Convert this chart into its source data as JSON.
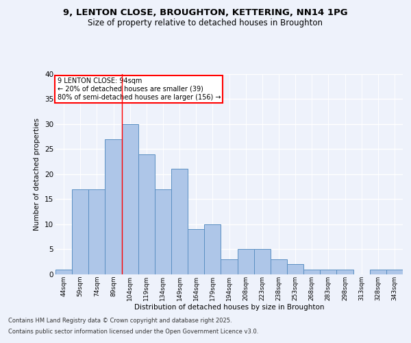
{
  "title_line1": "9, LENTON CLOSE, BROUGHTON, KETTERING, NN14 1PG",
  "title_line2": "Size of property relative to detached houses in Broughton",
  "xlabel": "Distribution of detached houses by size in Broughton",
  "ylabel": "Number of detached properties",
  "categories": [
    "44sqm",
    "59sqm",
    "74sqm",
    "89sqm",
    "104sqm",
    "119sqm",
    "134sqm",
    "149sqm",
    "164sqm",
    "179sqm",
    "194sqm",
    "208sqm",
    "223sqm",
    "238sqm",
    "253sqm",
    "268sqm",
    "283sqm",
    "298sqm",
    "313sqm",
    "328sqm",
    "343sqm"
  ],
  "values": [
    1,
    17,
    17,
    27,
    30,
    24,
    17,
    21,
    9,
    10,
    3,
    5,
    5,
    3,
    2,
    1,
    1,
    1,
    0,
    1,
    1
  ],
  "bar_color": "#aec6e8",
  "bar_edge_color": "#5a8fc2",
  "red_line_index": 3,
  "annotation_title": "9 LENTON CLOSE: 94sqm",
  "annotation_line2": "← 20% of detached houses are smaller (39)",
  "annotation_line3": "80% of semi-detached houses are larger (156) →",
  "ylim": [
    0,
    40
  ],
  "yticks": [
    0,
    5,
    10,
    15,
    20,
    25,
    30,
    35,
    40
  ],
  "background_color": "#eef2fb",
  "plot_bg_color": "#eef2fb",
  "grid_color": "#ffffff",
  "footer_line1": "Contains HM Land Registry data © Crown copyright and database right 2025.",
  "footer_line2": "Contains public sector information licensed under the Open Government Licence v3.0."
}
